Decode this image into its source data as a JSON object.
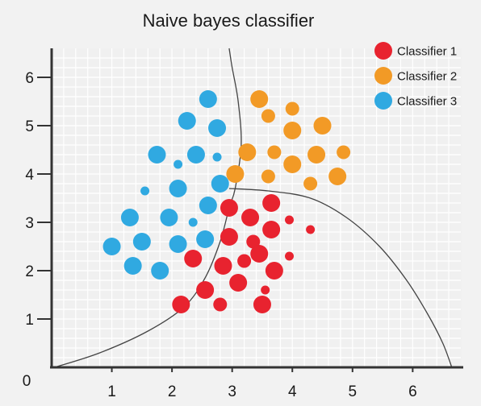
{
  "chart_data": {
    "type": "scatter",
    "title": "Naive bayes classifier",
    "xlabel": "",
    "ylabel": "",
    "xlim": [
      0,
      6.8
    ],
    "ylim": [
      0,
      6.6
    ],
    "origin_label": "0",
    "x_ticks": [
      1,
      2,
      3,
      4,
      5,
      6
    ],
    "y_ticks": [
      1,
      2,
      3,
      4,
      5,
      6
    ],
    "grid": true,
    "legend_position": "top-right",
    "series": [
      {
        "name": "Classifier 1",
        "color": "#e8232f",
        "points": [
          [
            2.95,
            3.3,
            3
          ],
          [
            3.3,
            3.1,
            3
          ],
          [
            3.65,
            3.4,
            3
          ],
          [
            3.95,
            3.05,
            1
          ],
          [
            4.3,
            2.85,
            1
          ],
          [
            2.95,
            2.7,
            3
          ],
          [
            3.35,
            2.6,
            2
          ],
          [
            3.65,
            2.85,
            3
          ],
          [
            2.35,
            2.25,
            3
          ],
          [
            2.85,
            2.1,
            3
          ],
          [
            3.2,
            2.2,
            2
          ],
          [
            3.45,
            2.35,
            3
          ],
          [
            3.95,
            2.3,
            1
          ],
          [
            3.7,
            2.0,
            3
          ],
          [
            2.55,
            1.6,
            3
          ],
          [
            3.1,
            1.75,
            3
          ],
          [
            3.55,
            1.6,
            1
          ],
          [
            2.15,
            1.3,
            3
          ],
          [
            2.8,
            1.3,
            2
          ],
          [
            3.5,
            1.3,
            3
          ]
        ]
      },
      {
        "name": "Classifier 2",
        "color": "#f29a26",
        "points": [
          [
            3.45,
            5.55,
            3
          ],
          [
            4.0,
            5.35,
            2
          ],
          [
            3.6,
            5.2,
            2
          ],
          [
            4.5,
            5.0,
            3
          ],
          [
            4.0,
            4.9,
            3
          ],
          [
            3.25,
            4.45,
            3
          ],
          [
            3.7,
            4.45,
            2
          ],
          [
            4.4,
            4.4,
            3
          ],
          [
            4.85,
            4.45,
            2
          ],
          [
            4.0,
            4.2,
            3
          ],
          [
            3.05,
            4.0,
            3
          ],
          [
            3.6,
            3.95,
            2
          ],
          [
            4.3,
            3.8,
            2
          ],
          [
            4.75,
            3.95,
            3
          ]
        ]
      },
      {
        "name": "Classifier 3",
        "color": "#30a9e1",
        "points": [
          [
            2.6,
            5.55,
            3
          ],
          [
            2.25,
            5.1,
            3
          ],
          [
            2.75,
            4.95,
            3
          ],
          [
            1.75,
            4.4,
            3
          ],
          [
            2.1,
            4.2,
            1
          ],
          [
            2.4,
            4.4,
            3
          ],
          [
            2.75,
            4.35,
            1
          ],
          [
            1.55,
            3.65,
            1
          ],
          [
            2.1,
            3.7,
            3
          ],
          [
            2.8,
            3.8,
            3
          ],
          [
            1.3,
            3.1,
            3
          ],
          [
            1.95,
            3.1,
            3
          ],
          [
            2.35,
            3.0,
            1
          ],
          [
            2.6,
            3.35,
            3
          ],
          [
            1.0,
            2.5,
            3
          ],
          [
            1.5,
            2.6,
            3
          ],
          [
            2.1,
            2.55,
            3
          ],
          [
            2.55,
            2.65,
            3
          ],
          [
            1.35,
            2.1,
            3
          ],
          [
            1.8,
            2.0,
            3
          ]
        ]
      }
    ],
    "boundaries": [
      {
        "type": "curve",
        "points": [
          [
            0.05,
            0.0
          ],
          [
            0.8,
            0.3
          ],
          [
            1.6,
            0.75
          ],
          [
            2.2,
            1.25
          ],
          [
            2.55,
            1.85
          ],
          [
            2.8,
            2.6
          ],
          [
            2.95,
            3.3
          ],
          [
            3.05,
            3.7
          ],
          [
            3.15,
            4.6
          ],
          [
            3.1,
            5.5
          ],
          [
            3.0,
            6.2
          ],
          [
            2.95,
            6.6
          ]
        ]
      },
      {
        "type": "curve",
        "points": [
          [
            2.95,
            3.7
          ],
          [
            3.6,
            3.65
          ],
          [
            4.3,
            3.5
          ],
          [
            4.9,
            3.1
          ],
          [
            5.45,
            2.5
          ],
          [
            5.9,
            1.8
          ],
          [
            6.25,
            1.1
          ],
          [
            6.5,
            0.5
          ],
          [
            6.65,
            0.0
          ]
        ]
      }
    ]
  }
}
